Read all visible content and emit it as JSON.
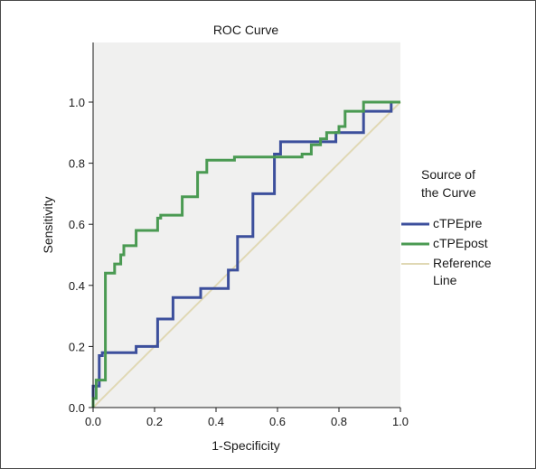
{
  "chart_data": {
    "type": "line",
    "title": "ROC Curve",
    "xlabel": "1-Specificity",
    "ylabel": "Sensitivity",
    "xlim": [
      0.0,
      1.0
    ],
    "ylim": [
      0.0,
      1.0
    ],
    "x_ticks": [
      0.0,
      0.2,
      0.4,
      0.6,
      0.8,
      1.0
    ],
    "y_ticks": [
      0.0,
      0.2,
      0.4,
      0.6,
      0.8,
      1.0
    ],
    "x_tick_labels": [
      "0.0",
      "0.2",
      "0.4",
      "0.6",
      "0.8",
      "1.0"
    ],
    "y_tick_labels": [
      "0.0",
      "0.2",
      "0.4",
      "0.6",
      "0.8",
      "1.0"
    ],
    "grid": false,
    "plot_background": "#f0f0ef",
    "legend": {
      "title_lines": [
        "Source of",
        "the Curve"
      ],
      "placement": "right"
    },
    "series": [
      {
        "name": "cTPEpre",
        "label_lines": [
          "cTPEpre"
        ],
        "color": "#3c4f9c",
        "step": true,
        "x": [
          0.0,
          0.0,
          0.02,
          0.02,
          0.03,
          0.03,
          0.05,
          0.05,
          0.14,
          0.14,
          0.21,
          0.21,
          0.26,
          0.26,
          0.35,
          0.35,
          0.44,
          0.44,
          0.47,
          0.47,
          0.52,
          0.52,
          0.59,
          0.59,
          0.61,
          0.61,
          0.79,
          0.79,
          0.88,
          0.88,
          0.97,
          0.97,
          1.0
        ],
        "y": [
          0.0,
          0.07,
          0.07,
          0.17,
          0.17,
          0.18,
          0.18,
          0.18,
          0.18,
          0.2,
          0.2,
          0.29,
          0.29,
          0.36,
          0.36,
          0.39,
          0.39,
          0.45,
          0.45,
          0.56,
          0.56,
          0.7,
          0.7,
          0.83,
          0.83,
          0.87,
          0.87,
          0.9,
          0.9,
          0.97,
          0.97,
          1.0,
          1.0
        ]
      },
      {
        "name": "cTPEpost",
        "label_lines": [
          "cTPEpost"
        ],
        "color": "#4a9a52",
        "step": true,
        "x": [
          0.0,
          0.0,
          0.01,
          0.01,
          0.04,
          0.04,
          0.07,
          0.07,
          0.09,
          0.09,
          0.1,
          0.1,
          0.14,
          0.14,
          0.21,
          0.21,
          0.22,
          0.22,
          0.29,
          0.29,
          0.34,
          0.34,
          0.37,
          0.37,
          0.46,
          0.46,
          0.68,
          0.68,
          0.71,
          0.71,
          0.74,
          0.74,
          0.76,
          0.76,
          0.8,
          0.8,
          0.82,
          0.82,
          0.88,
          0.88,
          1.0
        ],
        "y": [
          0.0,
          0.03,
          0.03,
          0.09,
          0.09,
          0.44,
          0.44,
          0.47,
          0.47,
          0.5,
          0.5,
          0.53,
          0.53,
          0.58,
          0.58,
          0.62,
          0.62,
          0.63,
          0.63,
          0.69,
          0.69,
          0.77,
          0.77,
          0.81,
          0.81,
          0.82,
          0.82,
          0.83,
          0.83,
          0.86,
          0.86,
          0.88,
          0.88,
          0.9,
          0.9,
          0.92,
          0.92,
          0.97,
          0.97,
          1.0,
          1.0
        ]
      },
      {
        "name": "Reference Line",
        "label_lines": [
          "Reference",
          "Line"
        ],
        "color": "#e0d8b4",
        "step": false,
        "x": [
          0.0,
          1.0
        ],
        "y": [
          0.0,
          1.0
        ]
      }
    ]
  }
}
